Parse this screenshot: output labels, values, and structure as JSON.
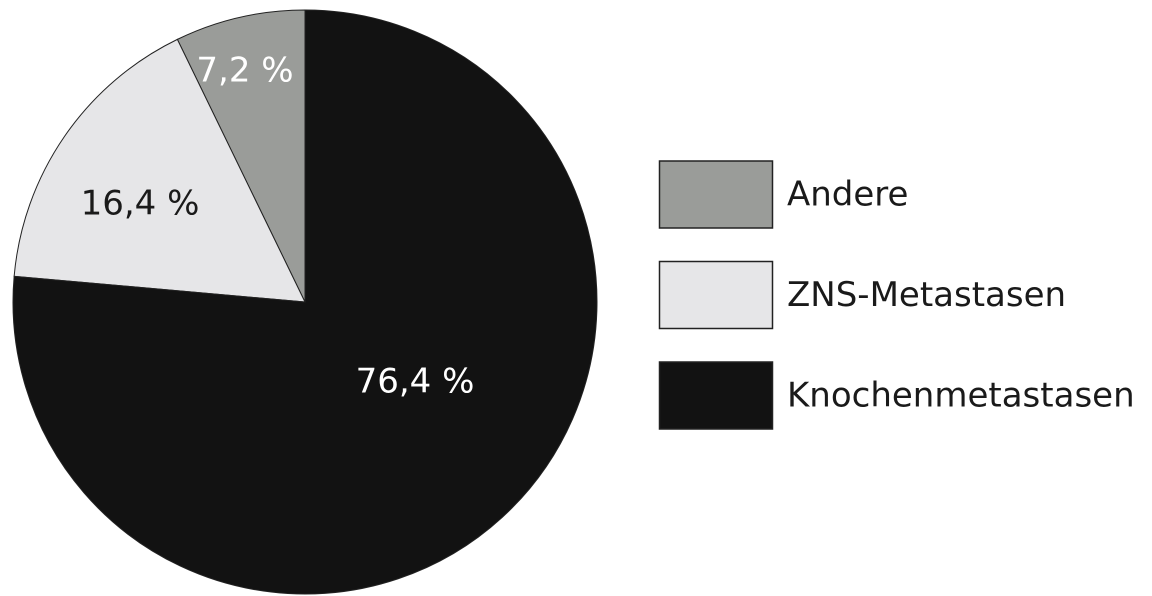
{
  "chart_data": {
    "type": "pie",
    "categories": [
      "Andere",
      "ZNS-Metastasen",
      "Knochenmetastasen"
    ],
    "values": [
      7.2,
      16.4,
      76.4
    ],
    "value_labels": [
      "7,2 %",
      "16,4 %",
      "76,4 %"
    ],
    "colors": [
      "#9a9c99",
      "#e6e6e8",
      "#121212"
    ],
    "legend": "right"
  }
}
